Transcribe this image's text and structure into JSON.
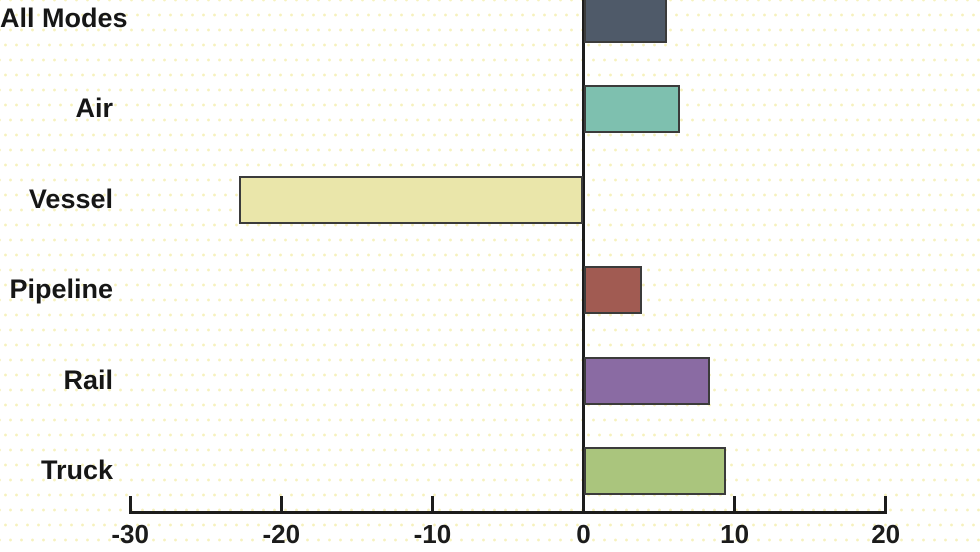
{
  "chart_data": {
    "type": "bar",
    "orientation": "horizontal",
    "title": "",
    "xlabel": "",
    "ylabel": "",
    "grid": false,
    "legend": false,
    "xlim": [
      -30,
      20
    ],
    "categories": [
      "All Modes",
      "Air",
      "Vessel",
      "Pipeline",
      "Rail",
      "Truck"
    ],
    "values": [
      5.5,
      6.4,
      -22.8,
      3.9,
      8.4,
      9.4
    ],
    "bar_colors": [
      "#4f5a69",
      "#7ec0af",
      "#eae6aa",
      "#a15b52",
      "#8a6ba3",
      "#aac57d"
    ],
    "x_ticks": [
      -30,
      -20,
      -10,
      0,
      10,
      20
    ],
    "x_tick_labels": [
      "-30",
      "-20",
      "-10",
      "0",
      "10",
      "20"
    ]
  },
  "colors": {
    "axis": "#1c1c1c",
    "bar_border": "#3b3b3b",
    "label_text": "#161616",
    "background_dot": "#f6f1bd",
    "background": "#ffffff"
  }
}
